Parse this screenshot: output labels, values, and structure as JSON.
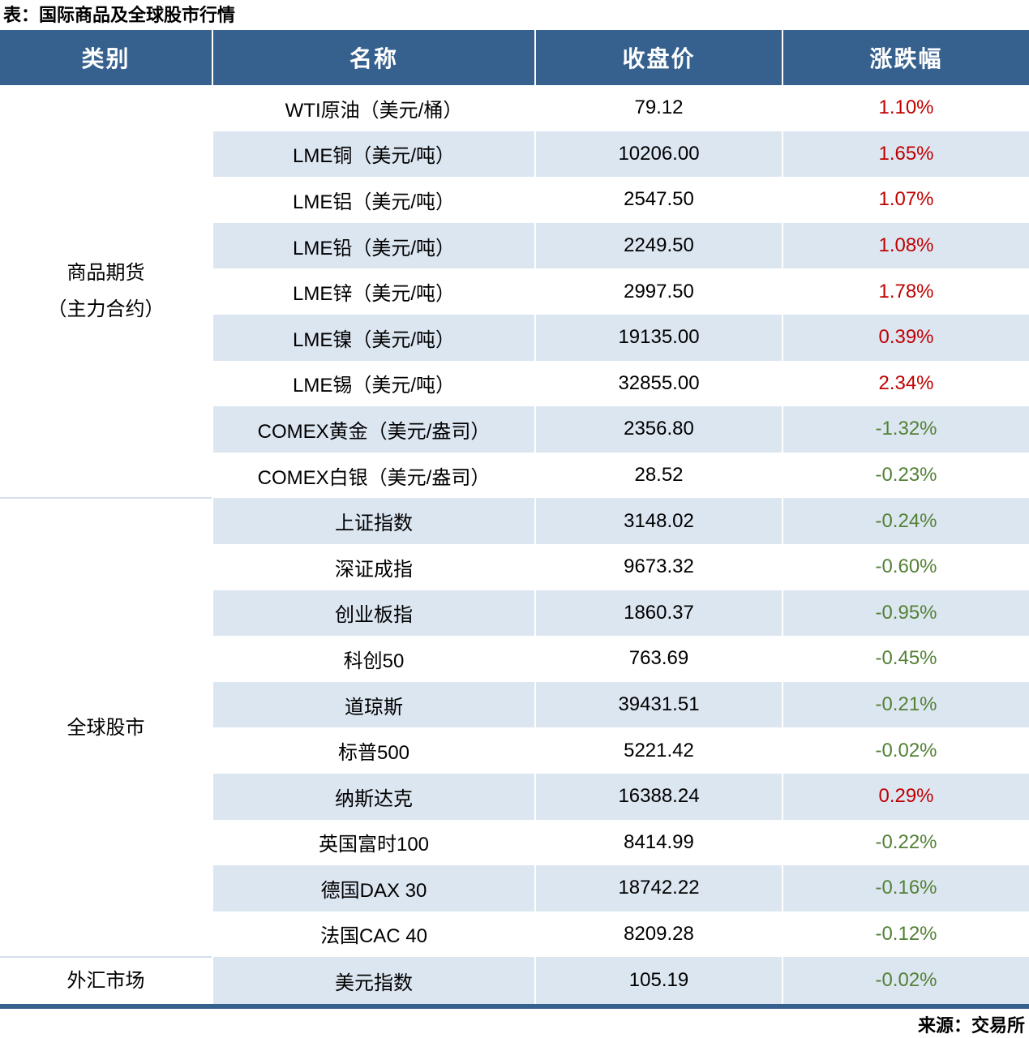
{
  "title": "表：国际商品及全球股市行情",
  "source": "来源：交易所",
  "colors": {
    "header_bg": "#36618E",
    "zebra_bg": "#DCE6F1",
    "up_red": "#C00000",
    "down_green": "#538135",
    "bottom_border": "#36618E"
  },
  "table": {
    "headers": [
      "类别",
      "名称",
      "收盘价",
      "涨跌幅"
    ],
    "sections": [
      {
        "category": "商品期货\n（主力合约）",
        "rows": [
          {
            "name": "WTI原油（美元/桶）",
            "close": "79.12",
            "change": "1.10%",
            "dir": "up"
          },
          {
            "name": "LME铜（美元/吨）",
            "close": "10206.00",
            "change": "1.65%",
            "dir": "up"
          },
          {
            "name": "LME铝（美元/吨）",
            "close": "2547.50",
            "change": "1.07%",
            "dir": "up"
          },
          {
            "name": "LME铅（美元/吨）",
            "close": "2249.50",
            "change": "1.08%",
            "dir": "up"
          },
          {
            "name": "LME锌（美元/吨）",
            "close": "2997.50",
            "change": "1.78%",
            "dir": "up"
          },
          {
            "name": "LME镍（美元/吨）",
            "close": "19135.00",
            "change": "0.39%",
            "dir": "up"
          },
          {
            "name": "LME锡（美元/吨）",
            "close": "32855.00",
            "change": "2.34%",
            "dir": "up"
          },
          {
            "name": "COMEX黄金（美元/盎司）",
            "close": "2356.80",
            "change": "-1.32%",
            "dir": "down"
          },
          {
            "name": "COMEX白银（美元/盎司）",
            "close": "28.52",
            "change": "-0.23%",
            "dir": "down"
          }
        ]
      },
      {
        "category": "全球股市",
        "rows": [
          {
            "name": "上证指数",
            "close": "3148.02",
            "change": "-0.24%",
            "dir": "down"
          },
          {
            "name": "深证成指",
            "close": "9673.32",
            "change": "-0.60%",
            "dir": "down"
          },
          {
            "name": "创业板指",
            "close": "1860.37",
            "change": "-0.95%",
            "dir": "down"
          },
          {
            "name": "科创50",
            "close": "763.69",
            "change": "-0.45%",
            "dir": "down"
          },
          {
            "name": "道琼斯",
            "close": "39431.51",
            "change": "-0.21%",
            "dir": "down"
          },
          {
            "name": "标普500",
            "close": "5221.42",
            "change": "-0.02%",
            "dir": "down"
          },
          {
            "name": "纳斯达克",
            "close": "16388.24",
            "change": "0.29%",
            "dir": "up"
          },
          {
            "name": "英国富时100",
            "close": "8414.99",
            "change": "-0.22%",
            "dir": "down"
          },
          {
            "name": "德国DAX 30",
            "close": "18742.22",
            "change": "-0.16%",
            "dir": "down"
          },
          {
            "name": "法国CAC 40",
            "close": "8209.28",
            "change": "-0.12%",
            "dir": "down"
          }
        ]
      },
      {
        "category": "外汇市场",
        "rows": [
          {
            "name": "美元指数",
            "close": "105.19",
            "change": "-0.02%",
            "dir": "down"
          }
        ]
      }
    ]
  }
}
